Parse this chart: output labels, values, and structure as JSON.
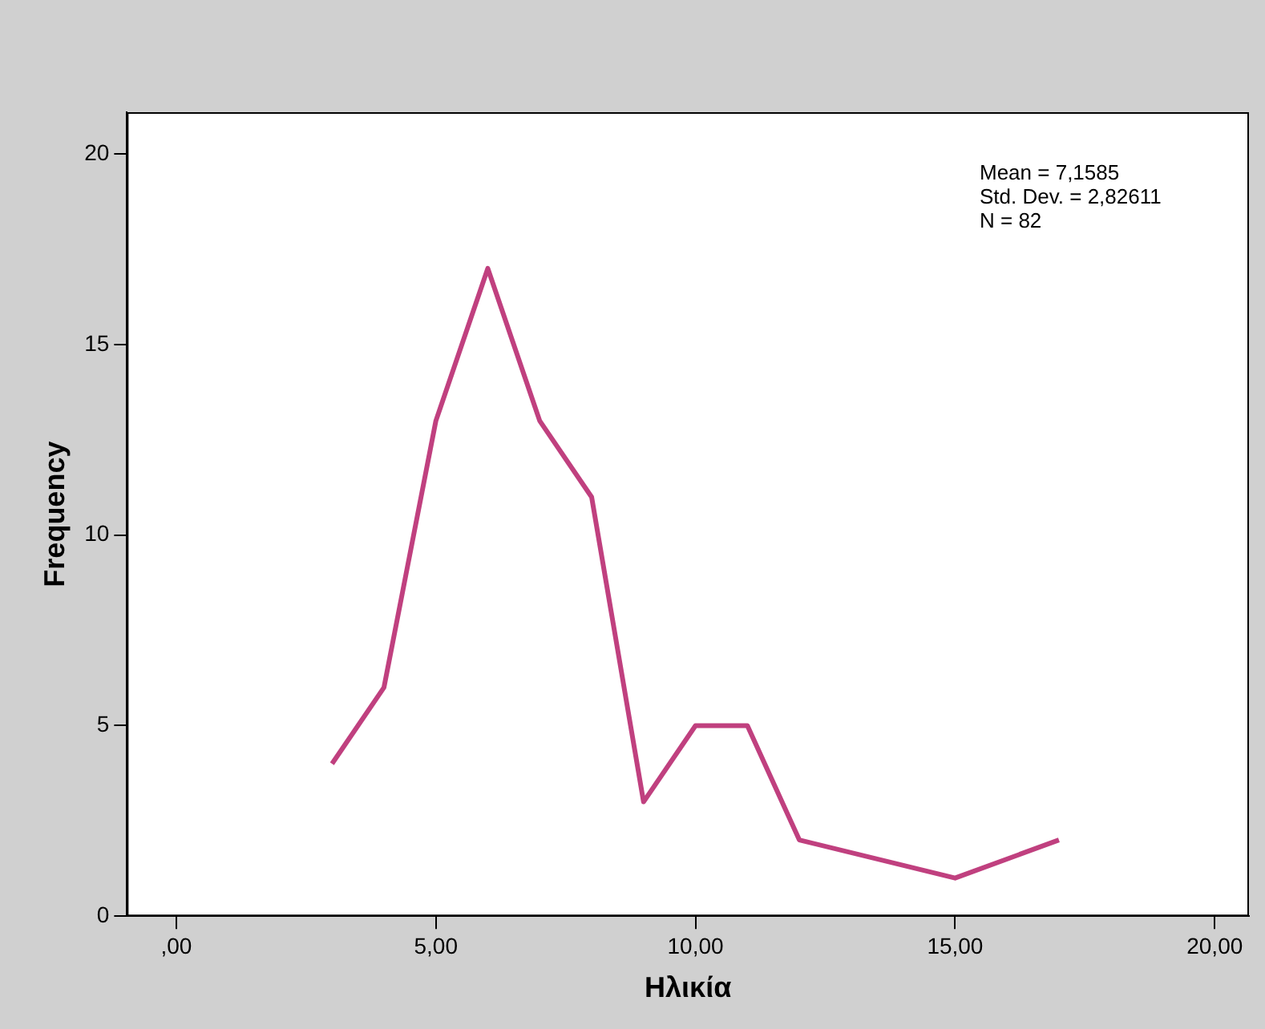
{
  "chart_data": {
    "type": "line",
    "xlabel": "Ηλικία",
    "ylabel": "Frequency",
    "x": [
      3,
      4,
      5,
      6,
      7,
      8,
      9,
      10,
      11,
      12,
      15,
      17
    ],
    "series": [
      {
        "color": "#c0407f",
        "values": [
          4,
          6,
          13,
          17,
          13,
          11,
          3,
          5,
          5,
          2,
          1,
          2
        ]
      }
    ],
    "xlim": [
      -0.95,
      20.66
    ],
    "xticks": [
      {
        "value": 0,
        "label": ",00"
      },
      {
        "value": 5,
        "label": "5,00"
      },
      {
        "value": 10,
        "label": "10,00"
      },
      {
        "value": 15,
        "label": "15,00"
      },
      {
        "value": 20,
        "label": "20,00"
      }
    ],
    "ylim": [
      0,
      21.1
    ],
    "yticks": [
      0,
      5,
      10,
      15,
      20
    ],
    "annotations": [
      "Mean = 7,1585",
      "Std. Dev. = 2,82611",
      "N = 82"
    ],
    "grid": false,
    "legend": false,
    "marker": "none",
    "line_style": "solid"
  }
}
